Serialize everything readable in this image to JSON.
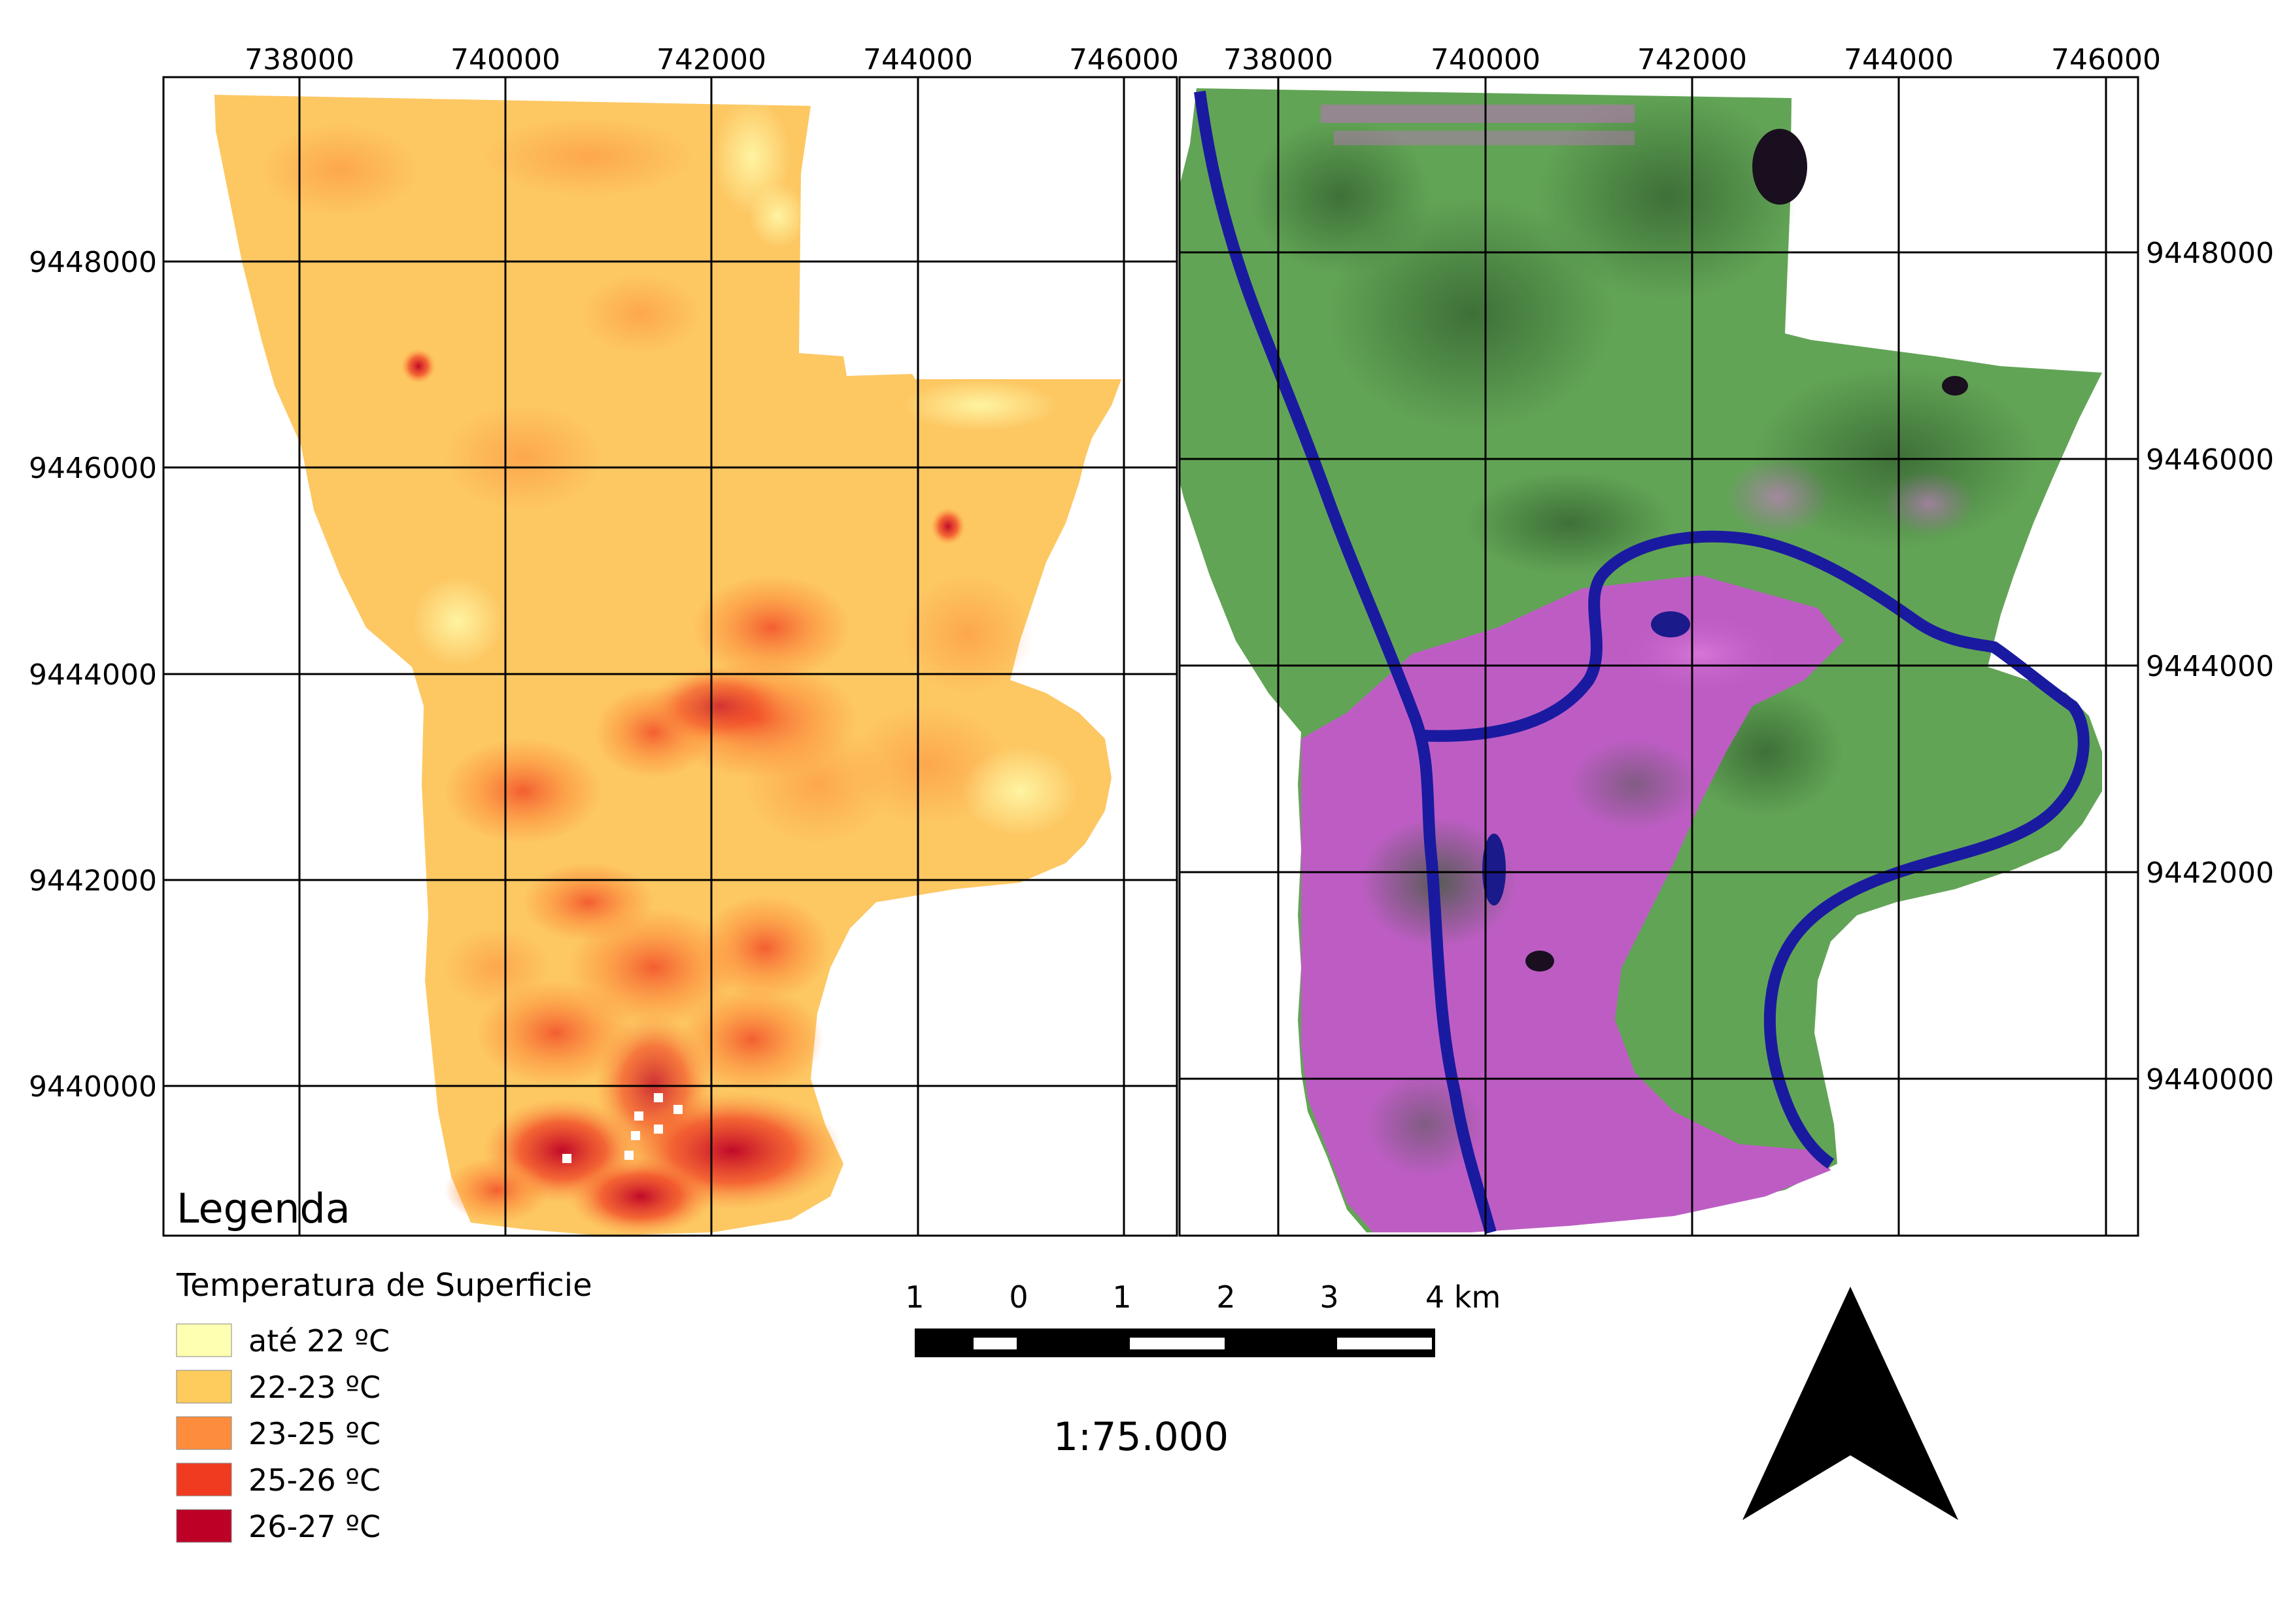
{
  "legend": {
    "title": "Legenda",
    "subtitle": "Temperatura de Superficie",
    "items": [
      {
        "label": "até 22 ºC",
        "color": "#ffffb2"
      },
      {
        "label": "22-23 ºC",
        "color": "#fecc5c"
      },
      {
        "label": "23-25 ºC",
        "color": "#fd8d3c"
      },
      {
        "label": "25-26 ºC",
        "color": "#f03b20"
      },
      {
        "label": "26-27 ºC",
        "color": "#bd0026"
      }
    ]
  },
  "x_ticks": [
    "738000",
    "740000",
    "742000",
    "744000",
    "746000"
  ],
  "y_ticks": [
    "9448000",
    "9446000",
    "9444000",
    "9442000",
    "9440000"
  ],
  "scale_bar": {
    "labels": [
      "1",
      "0",
      "1",
      "2",
      "3",
      "4 km"
    ],
    "ratio": "1:75.000"
  },
  "north_arrow": "north-arrow-icon",
  "colors": {
    "river": "#1a1aa0",
    "vegetation": "#5fa055",
    "urban": "#c060c8",
    "lake": "#1a0f1f"
  }
}
